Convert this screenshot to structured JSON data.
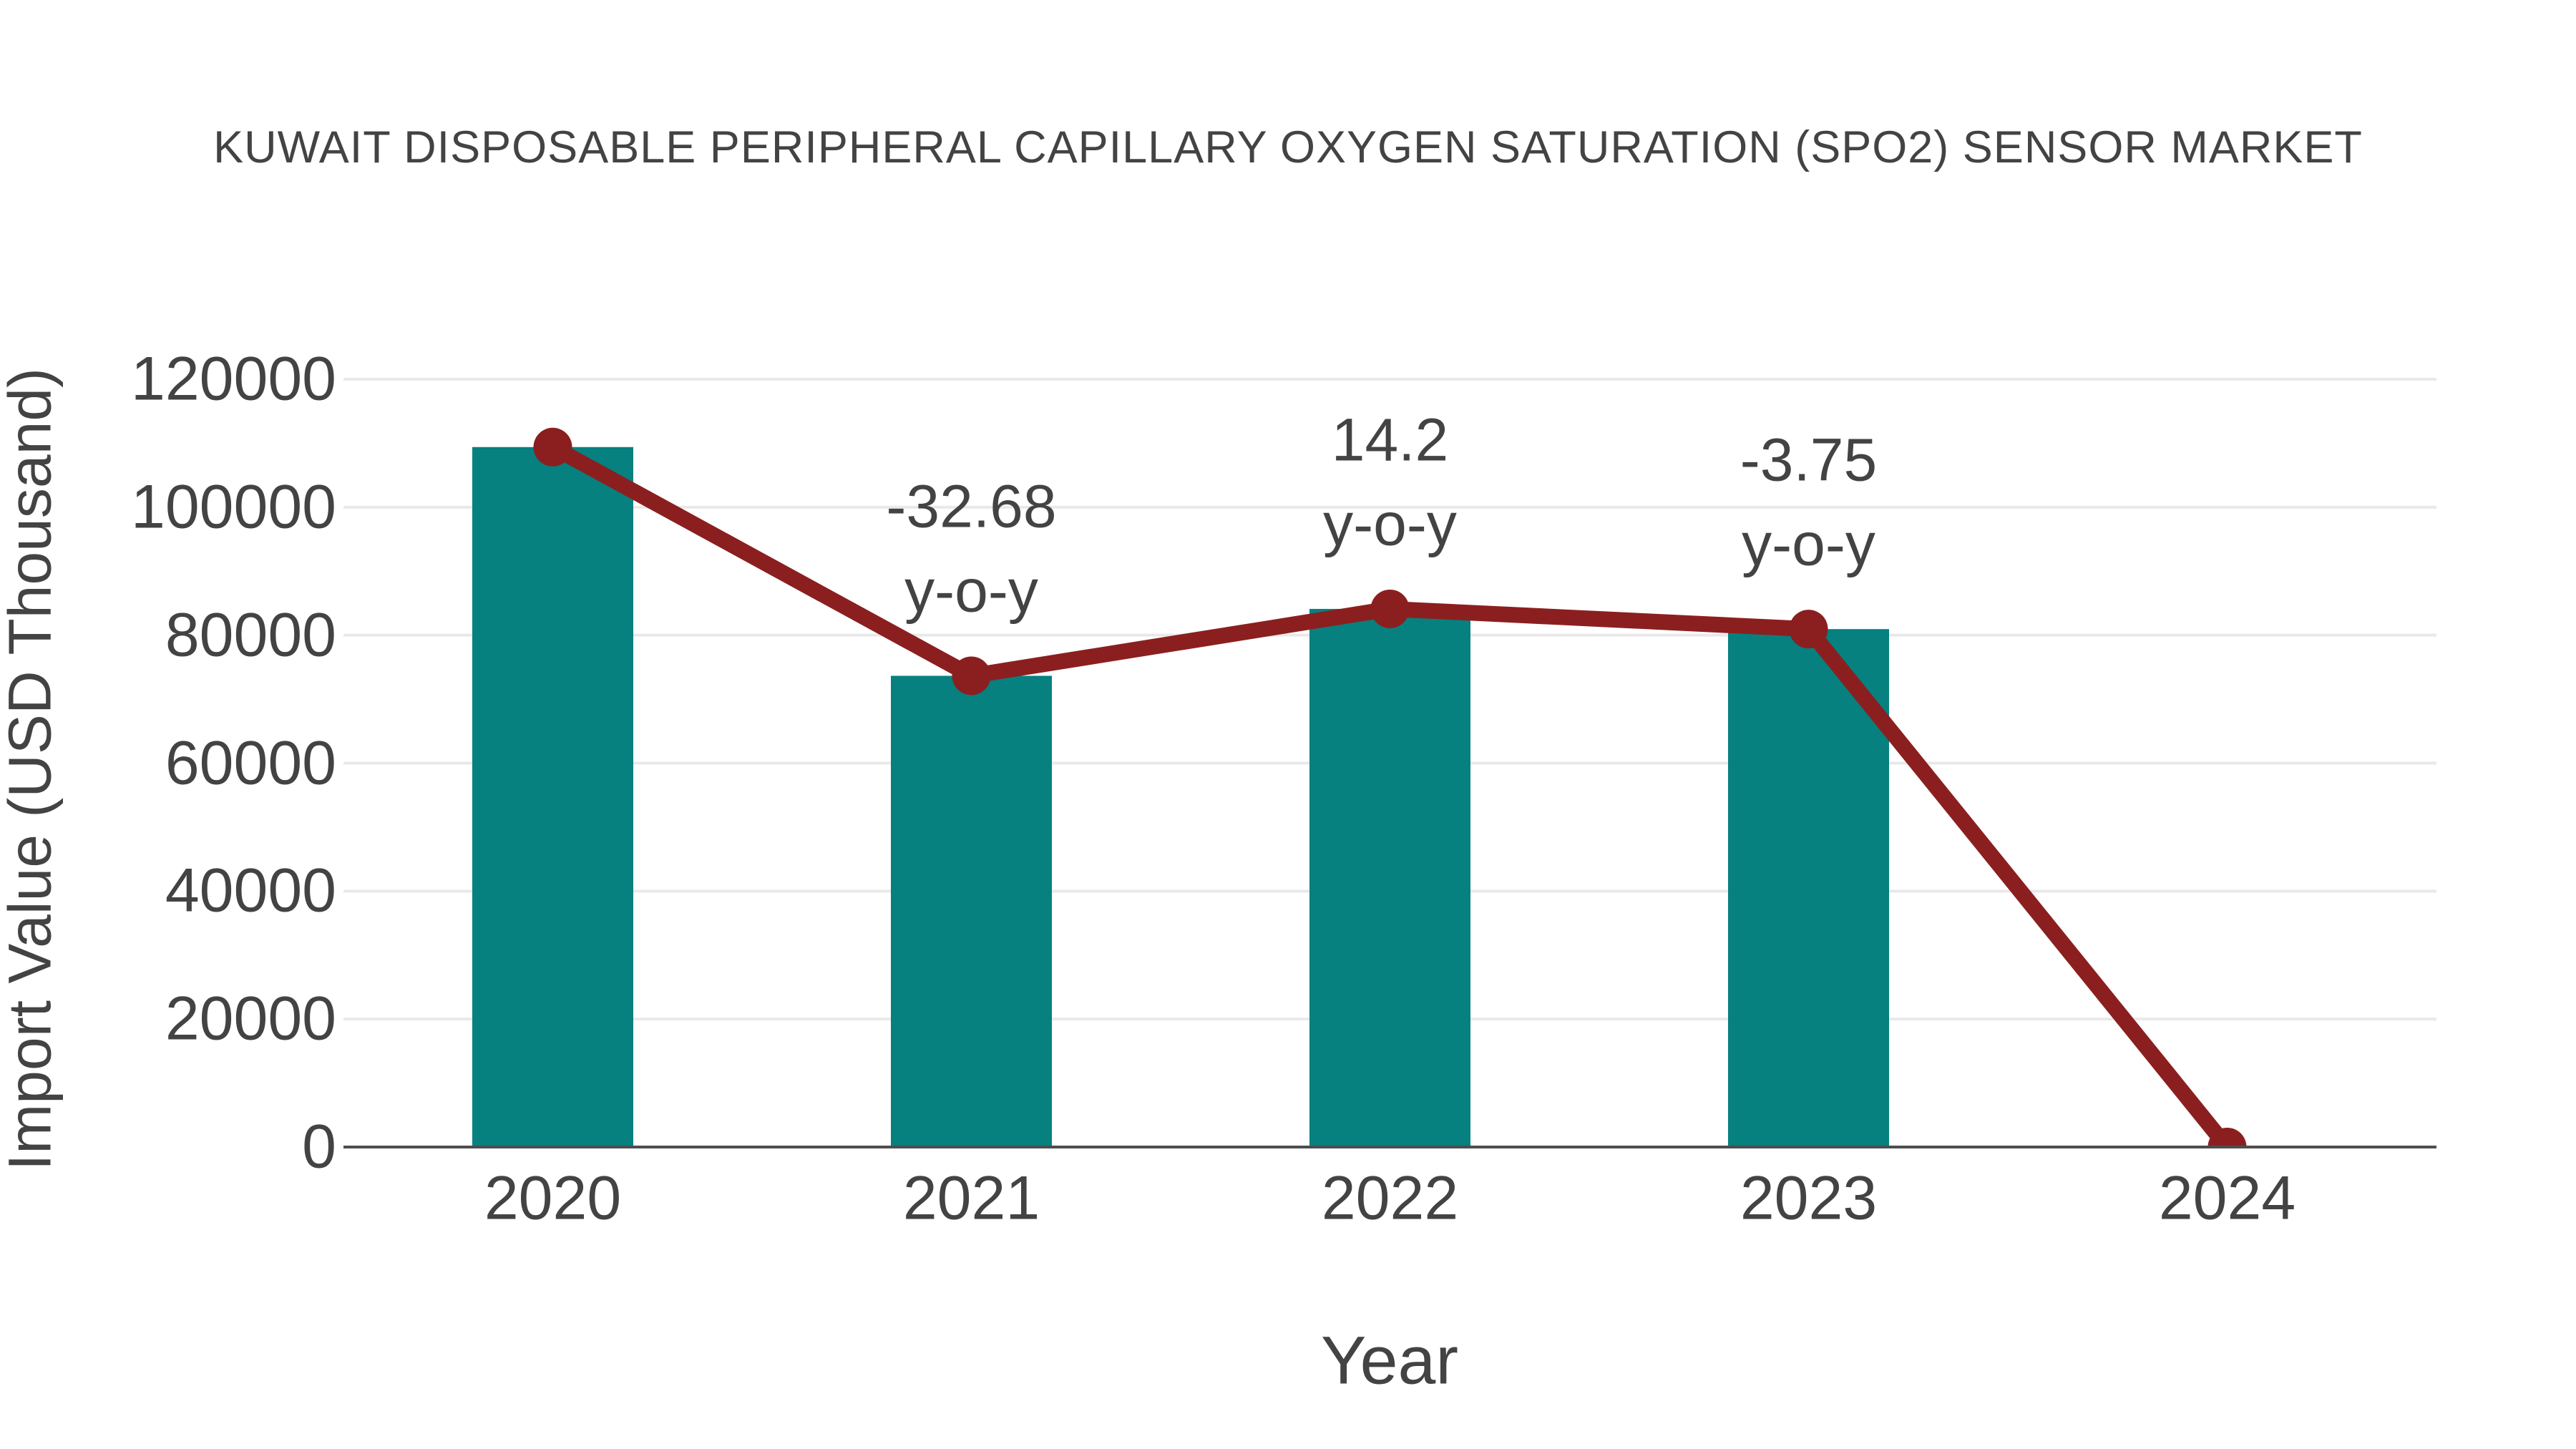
{
  "chart_data": {
    "type": "bar+line",
    "title": "KUWAIT DISPOSABLE PERIPHERAL CAPILLARY OXYGEN SATURATION (SPO2) SENSOR MARKET",
    "xlabel": "Year",
    "ylabel": "Import Value (USD Thousand)",
    "categories": [
      "2020",
      "2021",
      "2022",
      "2023",
      "2024"
    ],
    "yticks": [
      0,
      20000,
      40000,
      60000,
      80000,
      100000,
      120000
    ],
    "ylim": [
      0,
      120000
    ],
    "grid": "horizontal-light",
    "legend": "none",
    "series": [
      {
        "name": "Import Value bars",
        "type": "bar",
        "values": [
          109400,
          73648,
          84106,
          80952,
          0
        ]
      },
      {
        "name": "Import Value trend",
        "type": "line",
        "values": [
          109400,
          73648,
          84106,
          80952,
          0
        ]
      }
    ],
    "annotations": [
      {
        "category_index": 1,
        "value_label": "-32.68",
        "suffix": "y-o-y"
      },
      {
        "category_index": 2,
        "value_label": "14.2",
        "suffix": "y-o-y"
      },
      {
        "category_index": 3,
        "value_label": "-3.75",
        "suffix": "y-o-y"
      }
    ],
    "colors": {
      "bar": "#078080",
      "line": "#8B1F1F",
      "marker": "#8B1F1F",
      "grid": "#E9E9E9",
      "axis": "#4D4D4D",
      "text": "#434343"
    }
  }
}
